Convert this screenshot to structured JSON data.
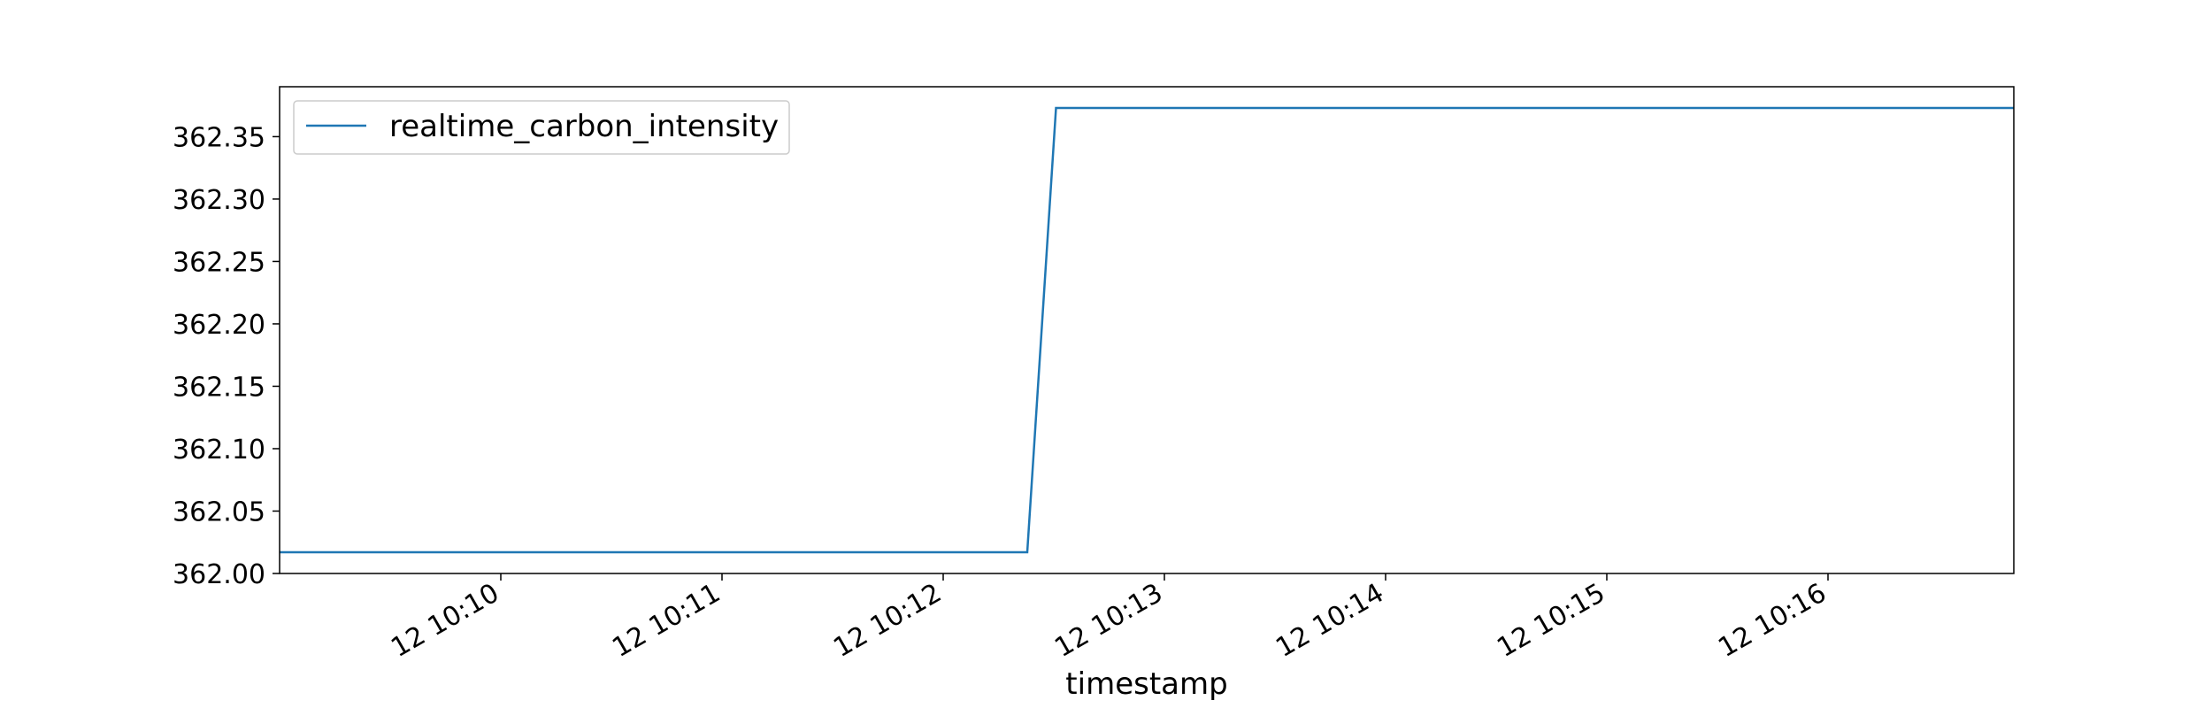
{
  "chart_data": {
    "type": "line",
    "title": "",
    "xlabel": "timestamp",
    "ylabel": "",
    "x_tick_labels": [
      "12 10:10",
      "12 10:11",
      "12 10:12",
      "12 10:13",
      "12 10:14",
      "12 10:15",
      "12 10:16"
    ],
    "y_tick_labels": [
      "362.00",
      "362.05",
      "362.10",
      "362.15",
      "362.20",
      "362.25",
      "362.30",
      "362.35"
    ],
    "x_ticks_minutes": [
      10,
      11,
      12,
      13,
      14,
      15,
      16
    ],
    "y_ticks": [
      362.0,
      362.05,
      362.1,
      362.15,
      362.2,
      362.25,
      362.3,
      362.35
    ],
    "xlim_minutes": [
      9.0,
      16.84
    ],
    "ylim": [
      362.0,
      362.39
    ],
    "grid": false,
    "legend_position": "upper-left",
    "series": [
      {
        "name": "realtime_carbon_intensity",
        "color": "#1f77b4",
        "x_minutes": [
          9.0,
          12.38,
          12.51,
          16.84
        ],
        "values": [
          362.017,
          362.017,
          362.373,
          362.373
        ]
      }
    ]
  }
}
